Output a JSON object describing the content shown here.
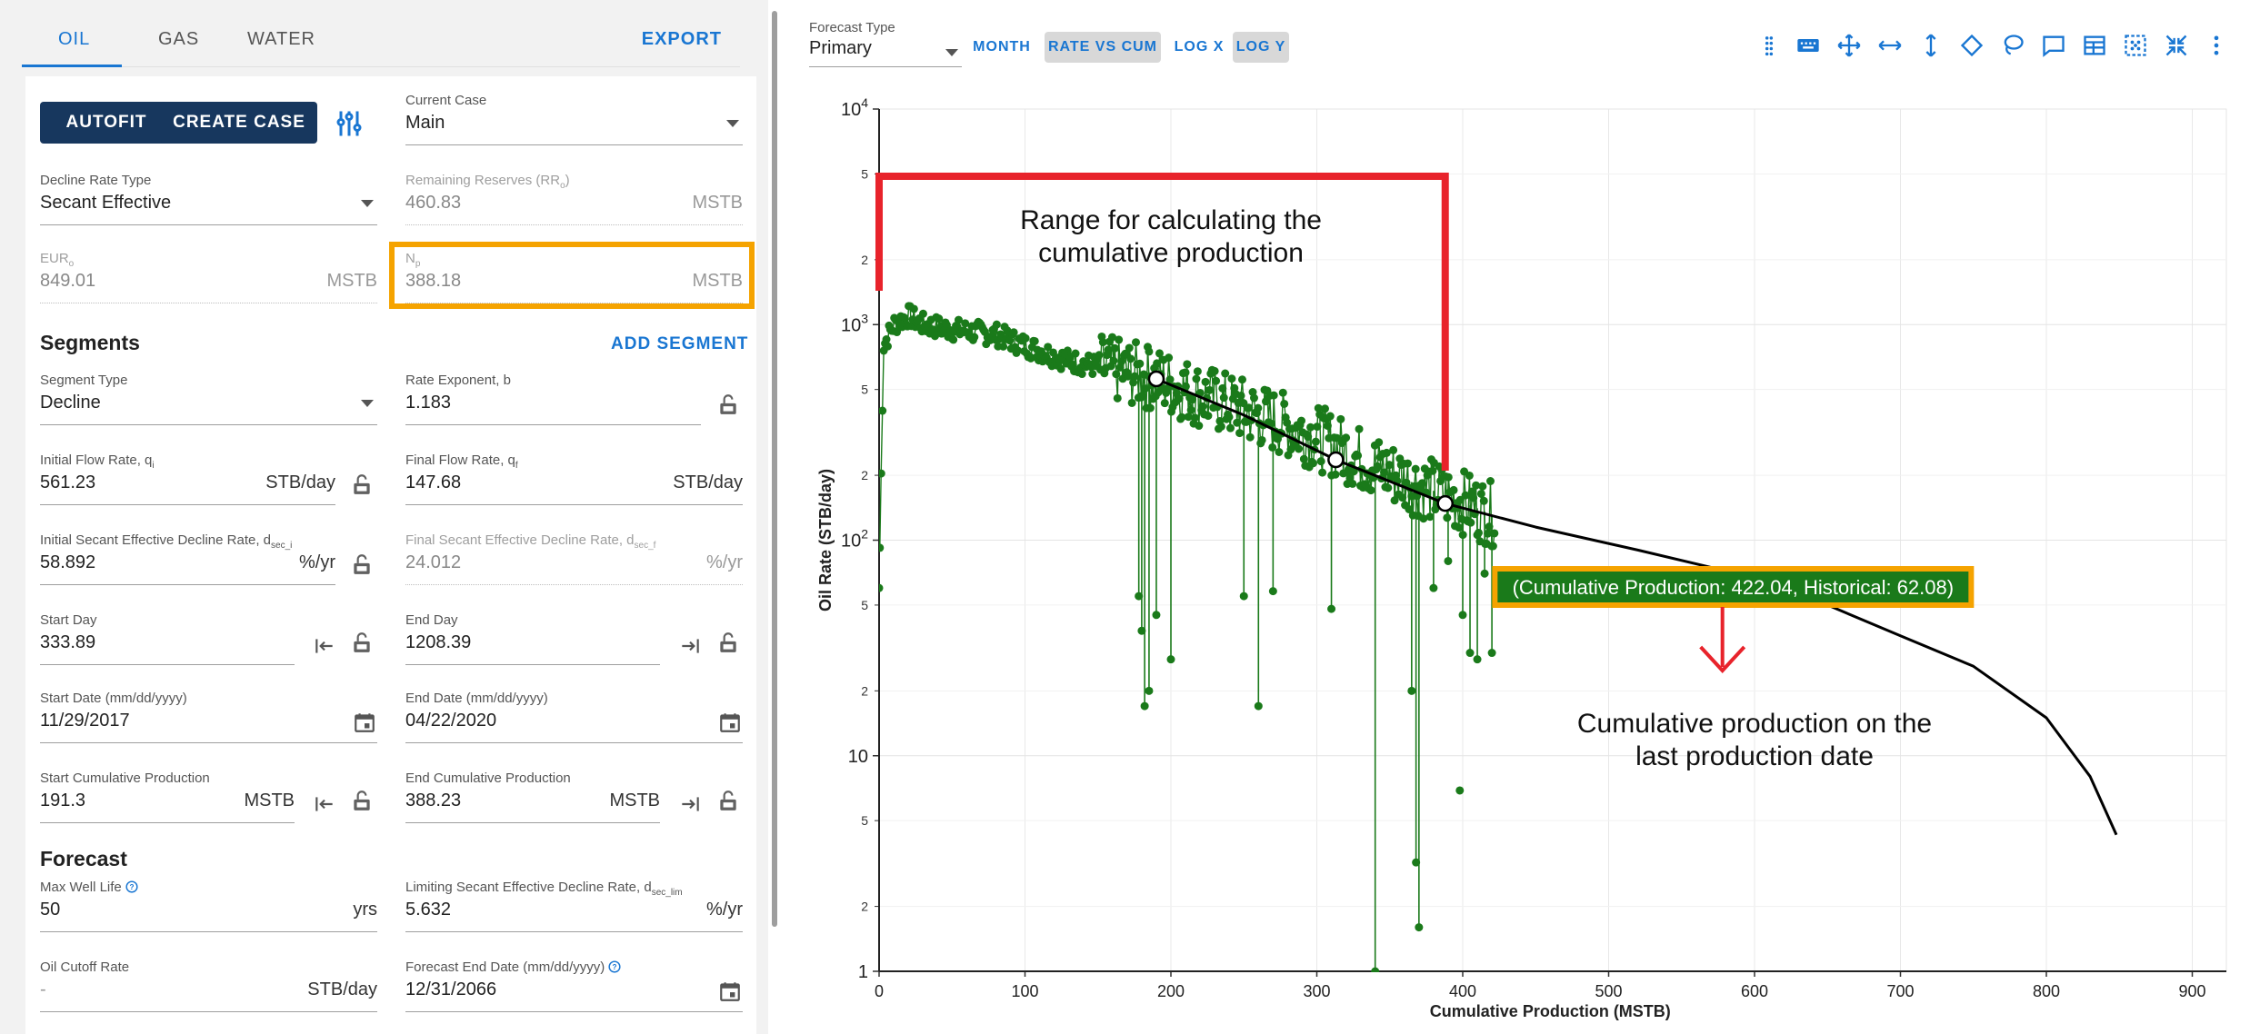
{
  "tabs": [
    {
      "label": "OIL",
      "active": true
    },
    {
      "label": "GAS",
      "active": false
    },
    {
      "label": "WATER",
      "active": false
    }
  ],
  "export_label": "EXPORT",
  "buttons": {
    "autofit": "AUTOFIT",
    "create_case": "CREATE CASE"
  },
  "fields": {
    "current_case": {
      "label": "Current Case",
      "value": "Main"
    },
    "decline_rate_type": {
      "label": "Decline Rate Type",
      "value": "Secant Effective"
    },
    "remaining_reserves": {
      "label": "Remaining Reserves (RR",
      "sub": "o",
      "label_end": ")",
      "value": "460.83",
      "unit": "MSTB"
    },
    "eur": {
      "label": "EUR",
      "sub": "o",
      "value": "849.01",
      "unit": "MSTB"
    },
    "np": {
      "label": "N",
      "sub": "p",
      "value": "388.18",
      "unit": "MSTB"
    }
  },
  "segments": {
    "title": "Segments",
    "add_label": "ADD SEGMENT",
    "segment_type": {
      "label": "Segment Type",
      "value": "Decline"
    },
    "rate_exponent": {
      "label": "Rate Exponent, b",
      "value": "1.183"
    },
    "initial_flow_rate": {
      "label": "Initial Flow Rate, q",
      "sub": "i",
      "value": "561.23",
      "unit": "STB/day"
    },
    "final_flow_rate": {
      "label": "Final Flow Rate, q",
      "sub": "f",
      "value": "147.68",
      "unit": "STB/day"
    },
    "initial_decline": {
      "label": "Initial Secant Effective Decline Rate, d",
      "sub": "sec_i",
      "value": "58.892",
      "unit": "%/yr"
    },
    "final_decline": {
      "label": "Final Secant Effective Decline Rate, d",
      "sub": "sec_f",
      "value": "24.012",
      "unit": "%/yr"
    },
    "start_day": {
      "label": "Start Day",
      "value": "333.89"
    },
    "end_day": {
      "label": "End Day",
      "value": "1208.39"
    },
    "start_date": {
      "label": "Start Date (mm/dd/yyyy)",
      "value": "11/29/2017"
    },
    "end_date": {
      "label": "End Date (mm/dd/yyyy)",
      "value": "04/22/2020"
    },
    "start_cum": {
      "label": "Start Cumulative Production",
      "value": "191.3",
      "unit": "MSTB"
    },
    "end_cum": {
      "label": "End Cumulative Production",
      "value": "388.23",
      "unit": "MSTB"
    }
  },
  "forecast": {
    "title": "Forecast",
    "max_well_life": {
      "label": "Max Well Life",
      "value": "50",
      "unit": "yrs"
    },
    "limiting_decline": {
      "label": "Limiting Secant Effective Decline Rate, d",
      "sub": "sec_lim",
      "value": "5.632",
      "unit": "%/yr"
    },
    "oil_cutoff": {
      "label": "Oil Cutoff Rate",
      "value": "-",
      "unit": "STB/day"
    },
    "forecast_end_date": {
      "label": "Forecast End Date (mm/dd/yyyy)",
      "value": "12/31/2066"
    }
  },
  "toolbar": {
    "forecast_type_label": "Forecast Type",
    "forecast_type_value": "Primary",
    "chips": [
      {
        "label": "MONTH",
        "on": false
      },
      {
        "label": "RATE VS CUM",
        "on": true
      },
      {
        "label": "LOG X",
        "on": false
      },
      {
        "label": "LOG Y",
        "on": true
      }
    ],
    "icons": [
      "drag-handle-icon",
      "keyboard-icon",
      "pan-icon",
      "horizontal-resize-icon",
      "vertical-resize-icon",
      "diamond-icon",
      "lasso-icon",
      "comment-icon",
      "table-icon",
      "autoscale-icon",
      "collapse-icon",
      "more-vert-icon"
    ]
  },
  "colors": {
    "primary_button": "#17375e",
    "accent": "#1976d2",
    "highlight": "#f5a300",
    "annotation_red": "#e8232b",
    "series_green": "#1a7a1a",
    "forecast_black": "#000000"
  },
  "chart_data": {
    "type": "scatter",
    "xlabel": "Cumulative Production (MSTB)",
    "ylabel": "Oil Rate (STB/day)",
    "xlim": [
      0,
      920
    ],
    "ylim": [
      1,
      10000
    ],
    "y_scale": "log",
    "x_ticks": [
      "0",
      "100",
      "200",
      "300",
      "400",
      "500",
      "600",
      "700",
      "800",
      "900"
    ],
    "y_major_ticks": [
      {
        "value": 1,
        "label": "1"
      },
      {
        "value": 10,
        "label": "10"
      },
      {
        "value": 100,
        "label": "10",
        "exp": "2"
      },
      {
        "value": 1000,
        "label": "10",
        "exp": "3"
      },
      {
        "value": 10000,
        "label": "10",
        "exp": "4"
      }
    ],
    "y_minor_ticks": [
      {
        "value": 2,
        "label": "2"
      },
      {
        "value": 5,
        "label": "5"
      },
      {
        "value": 20,
        "label": "2"
      },
      {
        "value": 50,
        "label": "5"
      },
      {
        "value": 200,
        "label": "2"
      },
      {
        "value": 500,
        "label": "5"
      },
      {
        "value": 2000,
        "label": "2"
      },
      {
        "value": 5000,
        "label": "5"
      }
    ],
    "grid": true,
    "historical_series": {
      "color": "#1a7a1a",
      "trend": [
        [
          0,
          60
        ],
        [
          3,
          800
        ],
        [
          10,
          1000
        ],
        [
          15,
          1050
        ],
        [
          20,
          1100
        ],
        [
          30,
          1000
        ],
        [
          50,
          950
        ],
        [
          80,
          900
        ],
        [
          100,
          800
        ],
        [
          130,
          680
        ],
        [
          160,
          620
        ],
        [
          190,
          560
        ],
        [
          220,
          470
        ],
        [
          250,
          400
        ],
        [
          280,
          340
        ],
        [
          310,
          280
        ],
        [
          340,
          220
        ],
        [
          370,
          180
        ],
        [
          400,
          150
        ],
        [
          422,
          130
        ]
      ],
      "dips": [
        [
          0,
          60
        ],
        [
          178,
          55
        ],
        [
          180,
          38
        ],
        [
          182,
          17
        ],
        [
          185,
          20
        ],
        [
          190,
          45
        ],
        [
          200,
          28
        ],
        [
          250,
          55
        ],
        [
          260,
          17
        ],
        [
          270,
          58
        ],
        [
          310,
          48
        ],
        [
          340,
          1
        ],
        [
          365,
          20
        ],
        [
          368,
          3.2
        ],
        [
          370,
          1.6
        ],
        [
          380,
          60
        ],
        [
          390,
          80
        ],
        [
          400,
          45
        ],
        [
          405,
          30
        ],
        [
          410,
          28
        ],
        [
          415,
          70
        ],
        [
          420,
          30
        ]
      ],
      "outliers": [
        [
          398,
          6.9
        ],
        [
          185,
          750
        ],
        [
          210,
          600
        ]
      ]
    },
    "forecast_line": [
      [
        190,
        560
      ],
      [
        250,
        380
      ],
      [
        313,
        236
      ],
      [
        388,
        148
      ],
      [
        450,
        115
      ],
      [
        520,
        90
      ],
      [
        600,
        67
      ],
      [
        650,
        50
      ],
      [
        700,
        36
      ],
      [
        750,
        26
      ],
      [
        800,
        15
      ],
      [
        830,
        8
      ],
      [
        848,
        4.3
      ]
    ],
    "selected_points": [
      [
        190,
        560
      ],
      [
        313,
        236
      ],
      [
        388,
        148
      ]
    ],
    "annotations": {
      "range_text": [
        "Range for calculating the",
        "cumulative production"
      ],
      "tooltip_text": "(Cumulative Production: 422.04, Historical: 62.08)",
      "last_date_text": [
        "Cumulative production on the",
        "last production date"
      ]
    }
  }
}
